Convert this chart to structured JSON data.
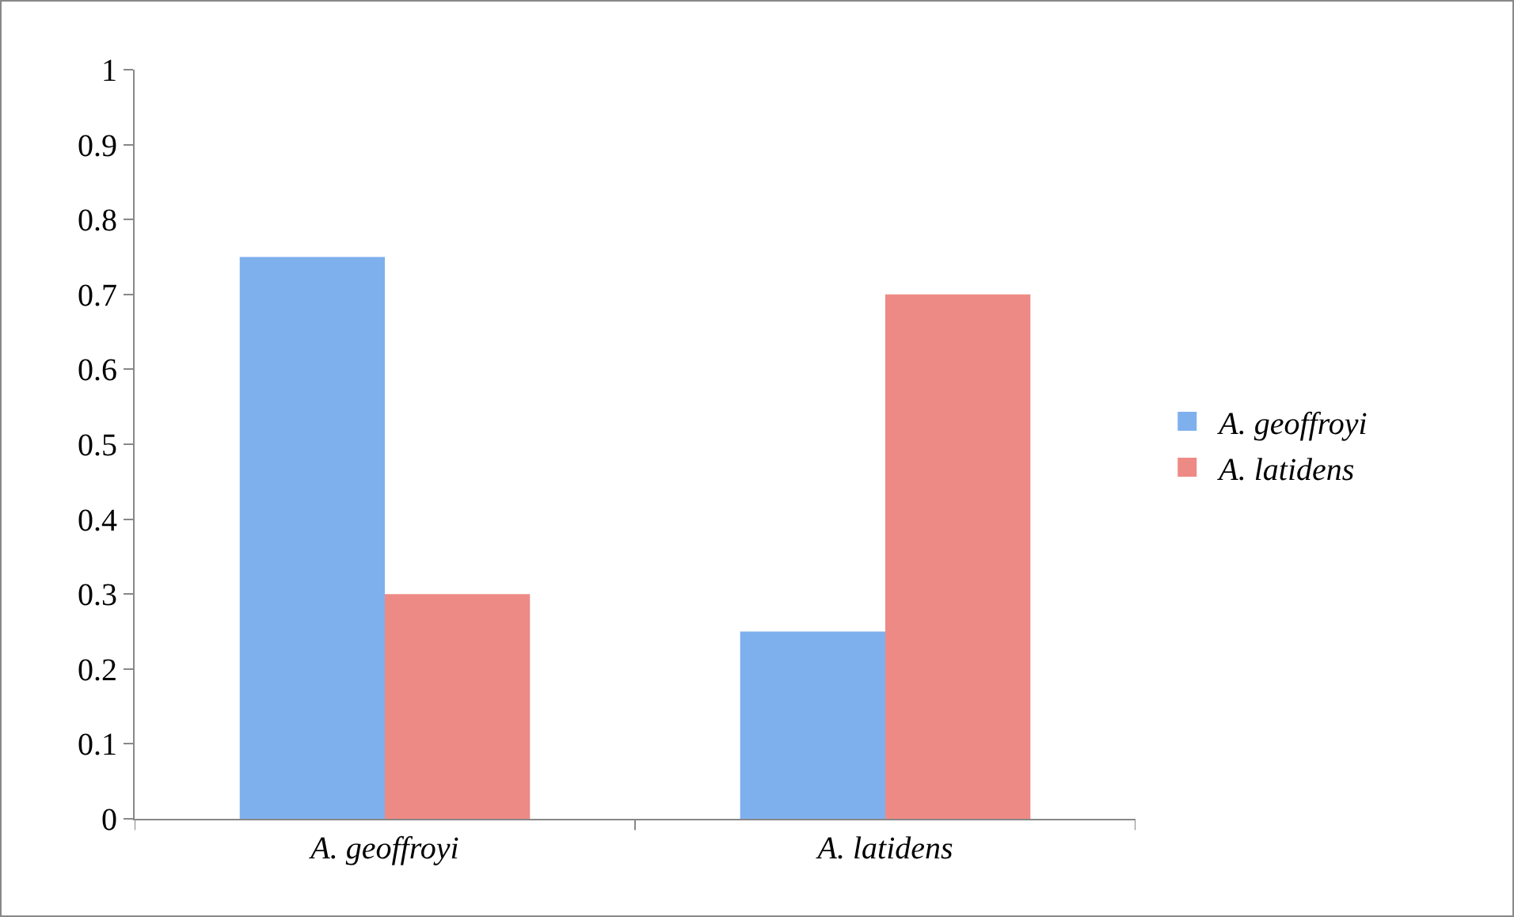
{
  "chart_data": {
    "type": "bar",
    "categories": [
      "A. geoffroyi",
      "A. latidens"
    ],
    "series": [
      {
        "name": "A. geoffroyi",
        "color": "#7fb0ee",
        "values": [
          0.75,
          0.25
        ]
      },
      {
        "name": "A. latidens",
        "color": "#ee8a85",
        "values": [
          0.3,
          0.7
        ]
      }
    ],
    "ylim": [
      0,
      1
    ],
    "yticks": [
      0,
      0.1,
      0.2,
      0.3,
      0.4,
      0.5,
      0.6,
      0.7,
      0.8,
      0.9,
      1
    ],
    "grid": false,
    "legend": "right"
  }
}
